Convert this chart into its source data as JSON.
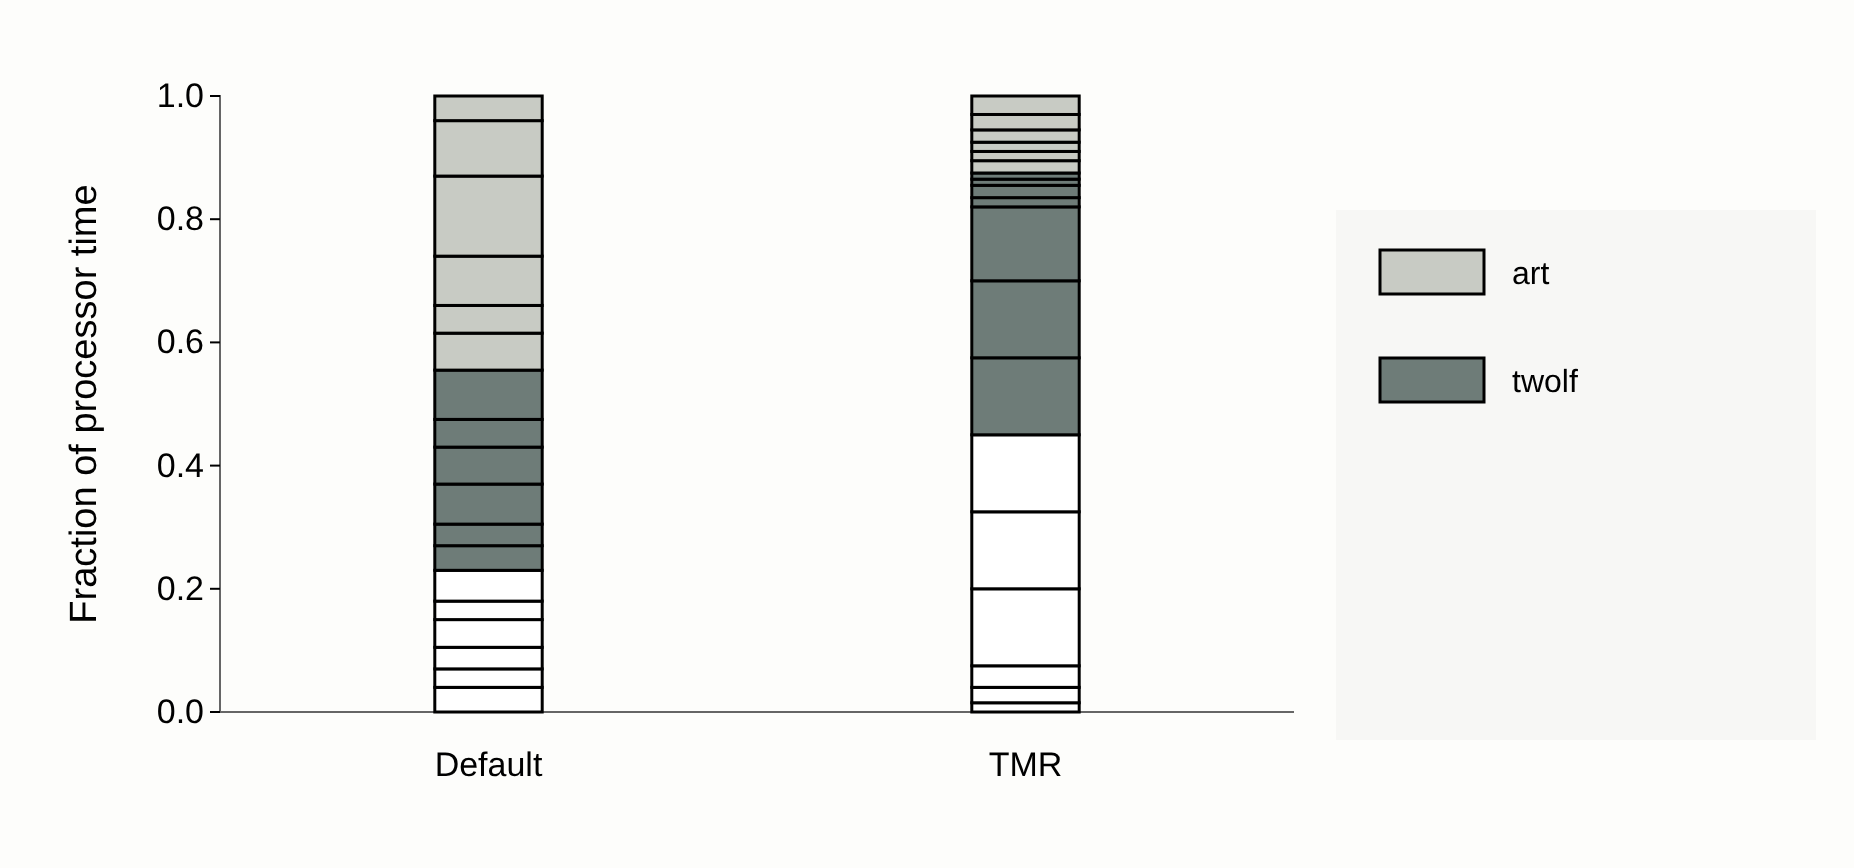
{
  "chart_data": {
    "type": "bar",
    "stacked": true,
    "ylabel": "Fraction of processor time",
    "categories": [
      "Default",
      "TMR"
    ],
    "ylim": [
      0,
      1
    ],
    "yticks": [
      {
        "value": 0,
        "label": "0.0"
      },
      {
        "value": 0.2,
        "label": "0.2"
      },
      {
        "value": 0.4,
        "label": "0.4"
      },
      {
        "value": 0.6,
        "label": "0.6"
      },
      {
        "value": 0.8,
        "label": "0.8"
      },
      {
        "value": 1,
        "label": "1.0"
      }
    ],
    "legend": "right",
    "grid": false,
    "series": [
      {
        "color": "#ffffff",
        "values": [
          0.04,
          0.015
        ]
      },
      {
        "color": "#ffffff",
        "values": [
          0.03,
          0.025
        ]
      },
      {
        "color": "#ffffff",
        "values": [
          0.035,
          0.035
        ]
      },
      {
        "color": "#ffffff",
        "values": [
          0.045,
          0.125
        ]
      },
      {
        "color": "#ffffff",
        "values": [
          0.03,
          0.125
        ]
      },
      {
        "color": "#ffffff",
        "values": [
          0.05,
          0.125
        ]
      },
      {
        "name": "twolf",
        "color": "#6e7c78",
        "values": [
          0.04,
          0.125
        ]
      },
      {
        "color": "#6e7c78",
        "values": [
          0.035,
          0.125
        ]
      },
      {
        "color": "#6e7c78",
        "values": [
          0.065,
          0.12
        ]
      },
      {
        "color": "#6e7c78",
        "values": [
          0.06,
          0.015
        ]
      },
      {
        "color": "#6e7c78",
        "values": [
          0.045,
          0.02
        ]
      },
      {
        "color": "#6e7c78",
        "values": [
          0.08,
          0.01
        ]
      },
      {
        "color": "#6e7c78",
        "values": [
          null,
          0.01
        ]
      },
      {
        "name": "art",
        "color": "#c8cbc4",
        "values": [
          0.06,
          0.02
        ]
      },
      {
        "color": "#c8cbc4",
        "values": [
          0.045,
          0.015
        ]
      },
      {
        "color": "#c8cbc4",
        "values": [
          0.08,
          0.015
        ]
      },
      {
        "color": "#c8cbc4",
        "values": [
          0.13,
          0.02
        ]
      },
      {
        "color": "#c8cbc4",
        "values": [
          0.09,
          0.025
        ]
      },
      {
        "color": "#c8cbc4",
        "values": [
          0.04,
          0.03
        ]
      }
    ]
  }
}
